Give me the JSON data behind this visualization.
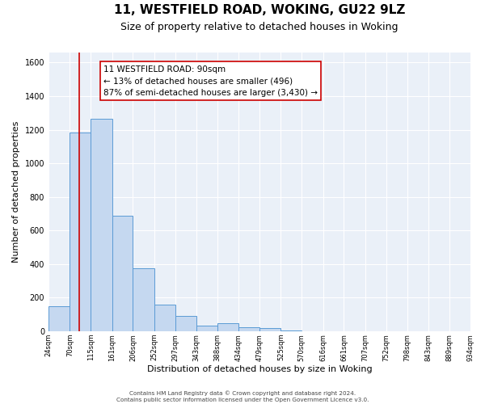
{
  "title": "11, WESTFIELD ROAD, WOKING, GU22 9LZ",
  "subtitle": "Size of property relative to detached houses in Woking",
  "xlabel": "Distribution of detached houses by size in Woking",
  "ylabel": "Number of detached properties",
  "bar_edges": [
    24,
    70,
    115,
    161,
    206,
    252,
    297,
    343,
    388,
    434,
    479,
    525,
    570,
    616,
    661,
    707,
    752,
    798,
    843,
    889,
    934
  ],
  "bar_heights": [
    150,
    1185,
    1265,
    690,
    375,
    160,
    90,
    35,
    50,
    25,
    20,
    5,
    0,
    0,
    0,
    0,
    0,
    0,
    0,
    0
  ],
  "bar_color": "#c5d8f0",
  "bar_edgecolor": "#5b9bd5",
  "property_line_x": 90,
  "property_line_color": "#cc0000",
  "annotation_text": "11 WESTFIELD ROAD: 90sqm\n← 13% of detached houses are smaller (496)\n87% of semi-detached houses are larger (3,430) →",
  "annotation_box_color": "#ffffff",
  "annotation_box_edgecolor": "#cc0000",
  "ylim": [
    0,
    1660
  ],
  "yticks": [
    0,
    200,
    400,
    600,
    800,
    1000,
    1200,
    1400,
    1600
  ],
  "tick_labels": [
    "24sqm",
    "70sqm",
    "115sqm",
    "161sqm",
    "206sqm",
    "252sqm",
    "297sqm",
    "343sqm",
    "388sqm",
    "434sqm",
    "479sqm",
    "525sqm",
    "570sqm",
    "616sqm",
    "661sqm",
    "707sqm",
    "752sqm",
    "798sqm",
    "843sqm",
    "889sqm",
    "934sqm"
  ],
  "plot_bg_color": "#eaf0f8",
  "fig_bg_color": "#ffffff",
  "grid_color": "#ffffff",
  "footer_line1": "Contains HM Land Registry data © Crown copyright and database right 2024.",
  "footer_line2": "Contains public sector information licensed under the Open Government Licence v3.0.",
  "title_fontsize": 11,
  "subtitle_fontsize": 9,
  "ylabel_fontsize": 8,
  "xlabel_fontsize": 8,
  "annotation_fontsize": 7.5,
  "tick_fontsize": 6,
  "ytick_fontsize": 7
}
